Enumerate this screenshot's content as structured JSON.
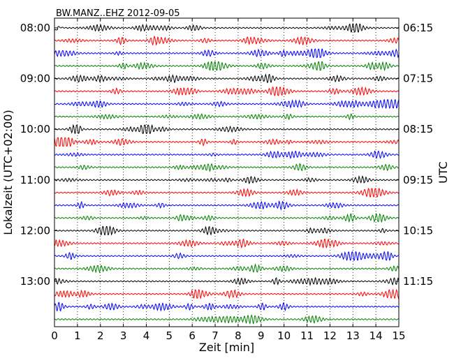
{
  "chart_data": {
    "type": "line",
    "title": "BW.MANZ..EHZ 2012-09-05",
    "xlabel": "Zeit  [min]",
    "ylabel_left": "Lokalzeit (UTC+02:00)",
    "ylabel_right": "UTC",
    "xlim": [
      0,
      15
    ],
    "x_ticks": [
      "0",
      "1",
      "2",
      "3",
      "4",
      "5",
      "6",
      "7",
      "8",
      "9",
      "10",
      "11",
      "12",
      "13",
      "14",
      "15"
    ],
    "grid": "vertical dotted at each minute",
    "line_interval_min": 15,
    "num_lines": 24,
    "left_tick_labels": [
      "08:00",
      "09:00",
      "10:00",
      "11:00",
      "12:00",
      "13:00"
    ],
    "right_tick_labels": [
      "06:15",
      "07:15",
      "08:15",
      "09:15",
      "10:15",
      "11:15"
    ],
    "line_color_cycle": [
      "#000000",
      "#ff0000",
      "#0000ff",
      "#008000"
    ],
    "series_description": "Continuous seismogram trace; each horizontal line shows 15 minutes of ground motion, lines advance by 15 minutes from top to bottom"
  }
}
